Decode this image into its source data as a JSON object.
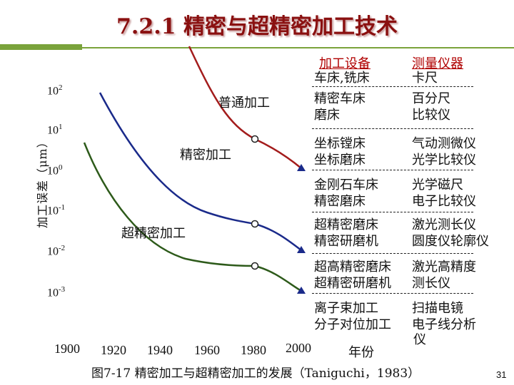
{
  "title": "7.2.1  精密与超精密加工技术",
  "y_axis_label": "加工误差（μm）",
  "y_ticks": [
    {
      "base": "10",
      "exp": "2"
    },
    {
      "base": "10",
      "exp": "1"
    },
    {
      "base": "10",
      "exp": "0"
    },
    {
      "base": "10",
      "exp": "-1"
    },
    {
      "base": "10",
      "exp": "-2"
    },
    {
      "base": "10",
      "exp": "-3"
    }
  ],
  "x_ticks": [
    "1900",
    "1920",
    "1940",
    "1960",
    "1980",
    "2000"
  ],
  "x_axis_label": "年份",
  "curves": [
    {
      "label": "普通加工",
      "color": "#a31c1c"
    },
    {
      "label": "精密加工",
      "color": "#1a2a8a"
    },
    {
      "label": "超精密加工",
      "color": "#2d5a1a"
    }
  ],
  "table": {
    "headers": [
      "加工设备",
      "测量仪器"
    ],
    "rows": [
      {
        "equipment": [
          "车床,铣床",
          "精密车床",
          "磨床"
        ],
        "instruments": [
          "卡尺",
          "百分尺",
          "比较仪"
        ]
      },
      {
        "equipment": [
          "坐标镗床",
          "坐标磨床"
        ],
        "instruments": [
          "气动测微仪",
          "光学比较仪"
        ]
      },
      {
        "equipment": [
          "金刚石车床",
          "精密磨床"
        ],
        "instruments": [
          "光学磁尺",
          "电子比较仪"
        ]
      },
      {
        "equipment": [
          "超精密磨床",
          "精密研磨机"
        ],
        "instruments": [
          "激光测长仪",
          "圆度仪轮廓仪"
        ]
      },
      {
        "equipment": [
          "超高精密磨床",
          "超精密研磨机"
        ],
        "instruments": [
          "激光高精度",
          "测长仪"
        ]
      },
      {
        "equipment": [
          "离子束加工",
          "分子对位加工"
        ],
        "instruments": [
          "扫描电镜",
          "电子线分析",
          "仪"
        ]
      }
    ]
  },
  "caption": "图7-17 精密加工与超精密加工的发展（Taniguchi，1983）",
  "page_number": "31"
}
